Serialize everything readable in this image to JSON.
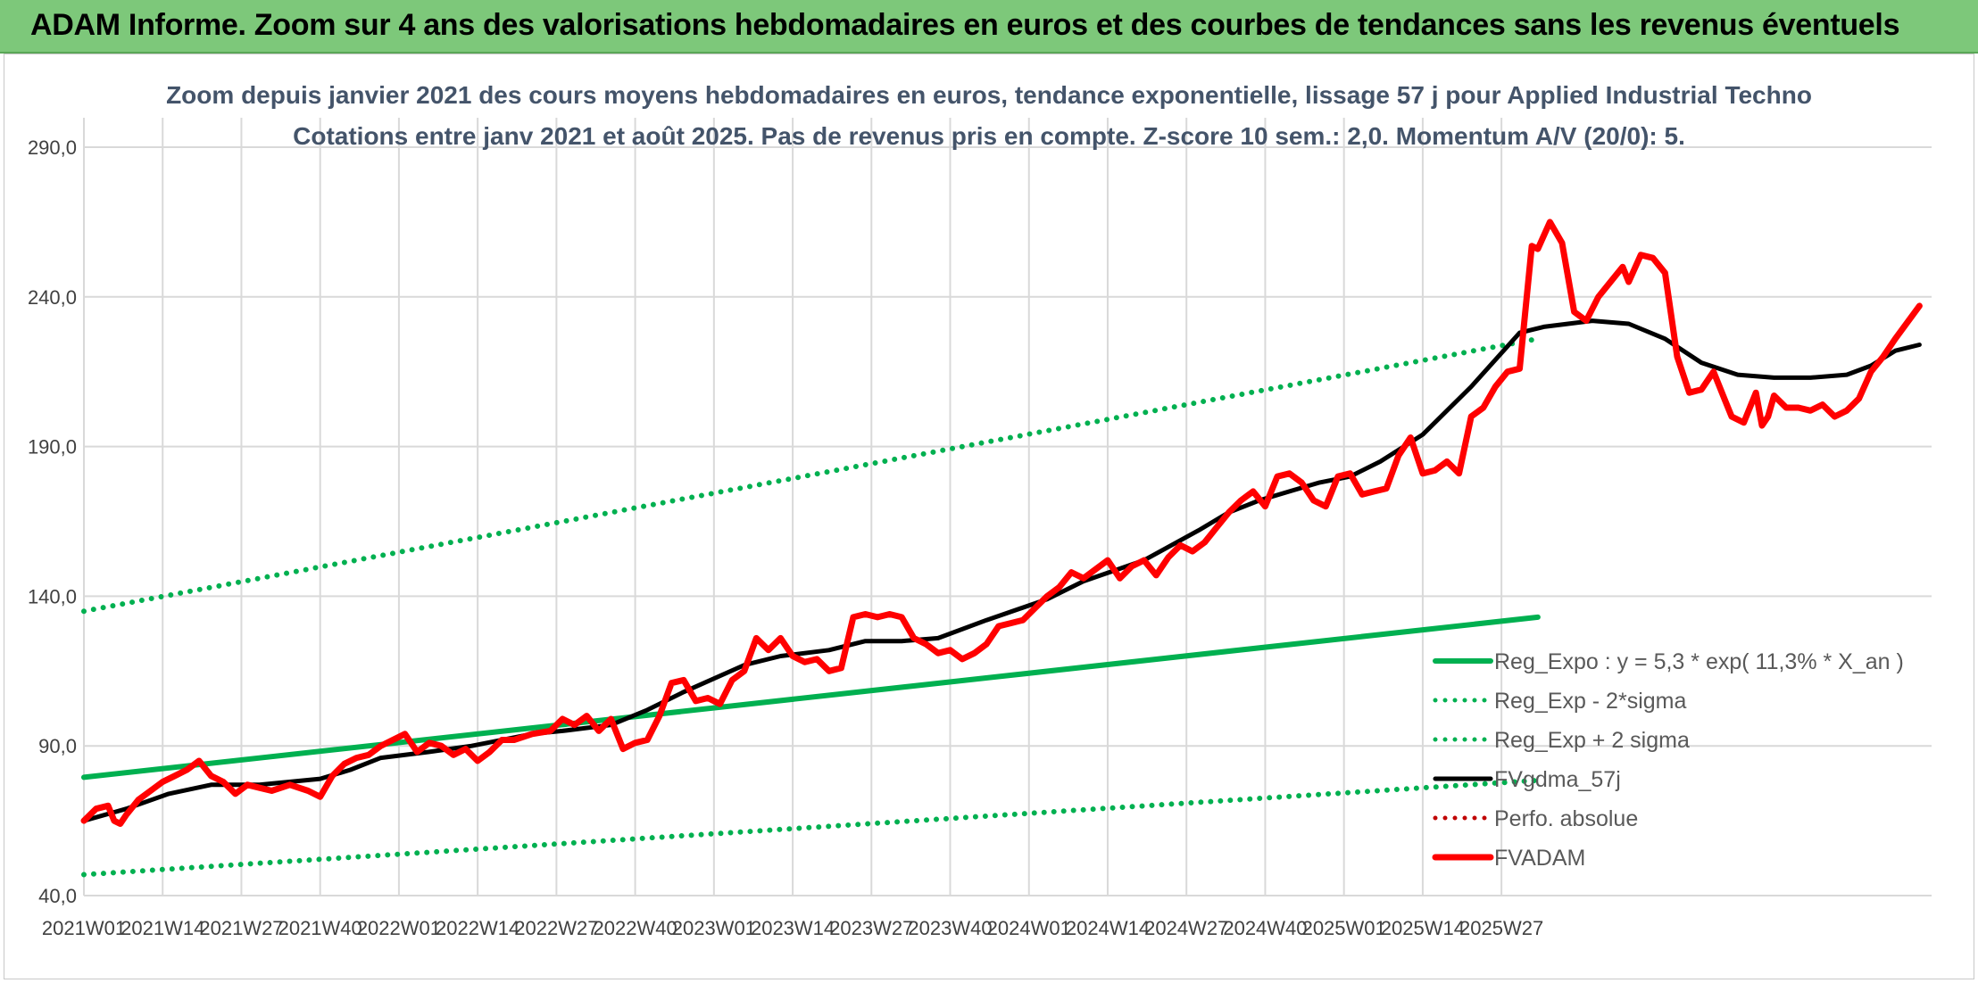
{
  "banner": {
    "title": "ADAM Informe. Zoom sur 4 ans des valorisations hebdomadaires en euros et des courbes de tendances sans les revenus éventuels",
    "color": "#7dc87a"
  },
  "chart_data": {
    "type": "line",
    "title": "Zoom depuis janvier 2021 des cours moyens hebdomadaires en euros, tendance exponentielle, lissage 57 j pour Applied Industrial Techno",
    "subtitle": "Cotations entre janv 2021 et août 2025. Pas de revenus pris en compte. Z-score 10 sem.: 2,0. Momentum A/V (20/0): 5.",
    "xlabel": "",
    "ylabel": "",
    "ylim": [
      40,
      290
    ],
    "yticks": [
      "40,0",
      "90,0",
      "140,0",
      "190,0",
      "240,0",
      "290,0"
    ],
    "xticks": [
      "2021W01",
      "2021W14",
      "2021W27",
      "2021W40",
      "2022W01",
      "2022W14",
      "2022W27",
      "2022W40",
      "2023W01",
      "2023W14",
      "2023W27",
      "2023W40",
      "2024W01",
      "2024W14",
      "2024W27",
      "2024W40",
      "2025W01",
      "2025W14",
      "2025W27"
    ],
    "grid": true,
    "legend_position": "bottom-right",
    "x_range_weeks": [
      1,
      241
    ],
    "series": [
      {
        "name": "Reg_Expo : y = 5,3 * exp( 11,3% *  X_an )",
        "style": "solid-thick",
        "color": "#00b050",
        "points": [
          [
            1,
            79.5
          ],
          [
            241,
            133
          ]
        ]
      },
      {
        "name": "Reg_Exp - 2*sigma",
        "style": "dotted",
        "color": "#00b050",
        "points": [
          [
            1,
            47
          ],
          [
            241,
            78.5
          ]
        ]
      },
      {
        "name": "Reg_Exp + 2 sigma",
        "style": "dotted",
        "color": "#00b050",
        "points": [
          [
            1,
            135
          ],
          [
            241,
            226
          ]
        ]
      },
      {
        "name": "FVgdma_57j",
        "style": "solid",
        "color": "#000000",
        "points": [
          [
            1,
            65
          ],
          [
            8,
            69
          ],
          [
            15,
            74
          ],
          [
            22,
            77
          ],
          [
            30,
            77
          ],
          [
            40,
            79
          ],
          [
            45,
            82
          ],
          [
            50,
            86
          ],
          [
            58,
            88
          ],
          [
            65,
            90
          ],
          [
            75,
            94
          ],
          [
            80,
            95
          ],
          [
            88,
            97
          ],
          [
            94,
            102
          ],
          [
            100,
            108
          ],
          [
            110,
            117
          ],
          [
            116,
            120
          ],
          [
            124,
            122
          ],
          [
            130,
            125
          ],
          [
            136,
            125
          ],
          [
            142,
            126
          ],
          [
            150,
            132
          ],
          [
            160,
            139
          ],
          [
            166,
            145
          ],
          [
            176,
            152
          ],
          [
            185,
            162
          ],
          [
            190,
            168
          ],
          [
            195,
            172
          ],
          [
            200,
            175
          ],
          [
            205,
            178
          ],
          [
            210,
            180
          ],
          [
            215,
            185
          ],
          [
            222,
            194
          ],
          [
            230,
            210
          ],
          [
            238,
            228
          ],
          [
            242,
            230
          ],
          [
            246,
            231
          ],
          [
            250,
            232
          ],
          [
            256,
            231
          ],
          [
            262,
            226
          ],
          [
            268,
            218
          ],
          [
            274,
            214
          ],
          [
            280,
            213
          ],
          [
            286,
            213
          ],
          [
            292,
            214
          ],
          [
            296,
            217
          ],
          [
            300,
            222
          ],
          [
            304,
            224
          ]
        ]
      },
      {
        "name": "Perfo. absolue",
        "style": "dotted",
        "color": "#c00000",
        "points": []
      },
      {
        "name": "FVADAM",
        "style": "solid-thick",
        "color": "#ff0000",
        "points": [
          [
            1,
            65
          ],
          [
            3,
            69
          ],
          [
            5,
            70
          ],
          [
            6,
            65
          ],
          [
            7,
            64
          ],
          [
            8,
            67
          ],
          [
            10,
            72
          ],
          [
            12,
            75
          ],
          [
            14,
            78
          ],
          [
            16,
            80
          ],
          [
            18,
            82
          ],
          [
            20,
            85
          ],
          [
            22,
            80
          ],
          [
            24,
            78
          ],
          [
            26,
            74
          ],
          [
            28,
            77
          ],
          [
            30,
            76
          ],
          [
            32,
            75
          ],
          [
            35,
            77
          ],
          [
            38,
            75
          ],
          [
            40,
            73
          ],
          [
            42,
            80
          ],
          [
            44,
            84
          ],
          [
            46,
            86
          ],
          [
            48,
            87
          ],
          [
            50,
            90
          ],
          [
            52,
            92
          ],
          [
            54,
            94
          ],
          [
            56,
            88
          ],
          [
            58,
            91
          ],
          [
            60,
            90
          ],
          [
            62,
            87
          ],
          [
            64,
            89
          ],
          [
            66,
            85
          ],
          [
            68,
            88
          ],
          [
            70,
            92
          ],
          [
            72,
            92
          ],
          [
            75,
            94
          ],
          [
            78,
            95
          ],
          [
            80,
            99
          ],
          [
            82,
            97
          ],
          [
            84,
            100
          ],
          [
            86,
            95
          ],
          [
            88,
            99
          ],
          [
            90,
            89
          ],
          [
            92,
            91
          ],
          [
            94,
            92
          ],
          [
            96,
            100
          ],
          [
            98,
            111
          ],
          [
            100,
            112
          ],
          [
            102,
            105
          ],
          [
            104,
            106
          ],
          [
            106,
            104
          ],
          [
            108,
            112
          ],
          [
            110,
            115
          ],
          [
            112,
            126
          ],
          [
            114,
            122
          ],
          [
            116,
            126
          ],
          [
            118,
            120
          ],
          [
            120,
            118
          ],
          [
            122,
            119
          ],
          [
            124,
            115
          ],
          [
            126,
            116
          ],
          [
            128,
            133
          ],
          [
            130,
            134
          ],
          [
            132,
            133
          ],
          [
            134,
            134
          ],
          [
            136,
            133
          ],
          [
            138,
            126
          ],
          [
            140,
            124
          ],
          [
            142,
            121
          ],
          [
            144,
            122
          ],
          [
            146,
            119
          ],
          [
            148,
            121
          ],
          [
            150,
            124
          ],
          [
            152,
            130
          ],
          [
            154,
            131
          ],
          [
            156,
            132
          ],
          [
            158,
            136
          ],
          [
            160,
            140
          ],
          [
            162,
            143
          ],
          [
            164,
            148
          ],
          [
            166,
            146
          ],
          [
            168,
            149
          ],
          [
            170,
            152
          ],
          [
            172,
            146
          ],
          [
            174,
            150
          ],
          [
            176,
            152
          ],
          [
            178,
            147
          ],
          [
            180,
            153
          ],
          [
            182,
            157
          ],
          [
            184,
            155
          ],
          [
            186,
            158
          ],
          [
            188,
            163
          ],
          [
            190,
            168
          ],
          [
            192,
            172
          ],
          [
            194,
            175
          ],
          [
            196,
            170
          ],
          [
            198,
            180
          ],
          [
            200,
            181
          ],
          [
            202,
            178
          ],
          [
            204,
            172
          ],
          [
            206,
            170
          ],
          [
            208,
            180
          ],
          [
            210,
            181
          ],
          [
            212,
            174
          ],
          [
            214,
            175
          ],
          [
            216,
            176
          ],
          [
            218,
            187
          ],
          [
            220,
            193
          ],
          [
            222,
            181
          ],
          [
            224,
            182
          ],
          [
            226,
            185
          ],
          [
            228,
            181
          ],
          [
            230,
            200
          ],
          [
            232,
            203
          ],
          [
            234,
            210
          ],
          [
            236,
            215
          ],
          [
            238,
            216
          ],
          [
            240,
            257
          ],
          [
            241,
            256
          ],
          [
            243,
            265
          ],
          [
            245,
            258
          ],
          [
            247,
            235
          ],
          [
            249,
            232
          ],
          [
            251,
            240
          ],
          [
            253,
            245
          ],
          [
            255,
            250
          ],
          [
            256,
            245
          ],
          [
            258,
            254
          ],
          [
            260,
            253
          ],
          [
            262,
            248
          ],
          [
            264,
            220
          ],
          [
            266,
            208
          ],
          [
            268,
            209
          ],
          [
            270,
            215
          ],
          [
            272,
            205
          ],
          [
            273,
            200
          ],
          [
            275,
            198
          ],
          [
            277,
            208
          ],
          [
            278,
            197
          ],
          [
            279,
            200
          ],
          [
            280,
            207
          ],
          [
            282,
            203
          ],
          [
            284,
            203
          ],
          [
            286,
            202
          ],
          [
            288,
            204
          ],
          [
            290,
            200
          ],
          [
            292,
            202
          ],
          [
            294,
            206
          ],
          [
            296,
            215
          ],
          [
            298,
            220
          ],
          [
            300,
            226
          ],
          [
            304,
            237
          ]
        ]
      }
    ]
  }
}
